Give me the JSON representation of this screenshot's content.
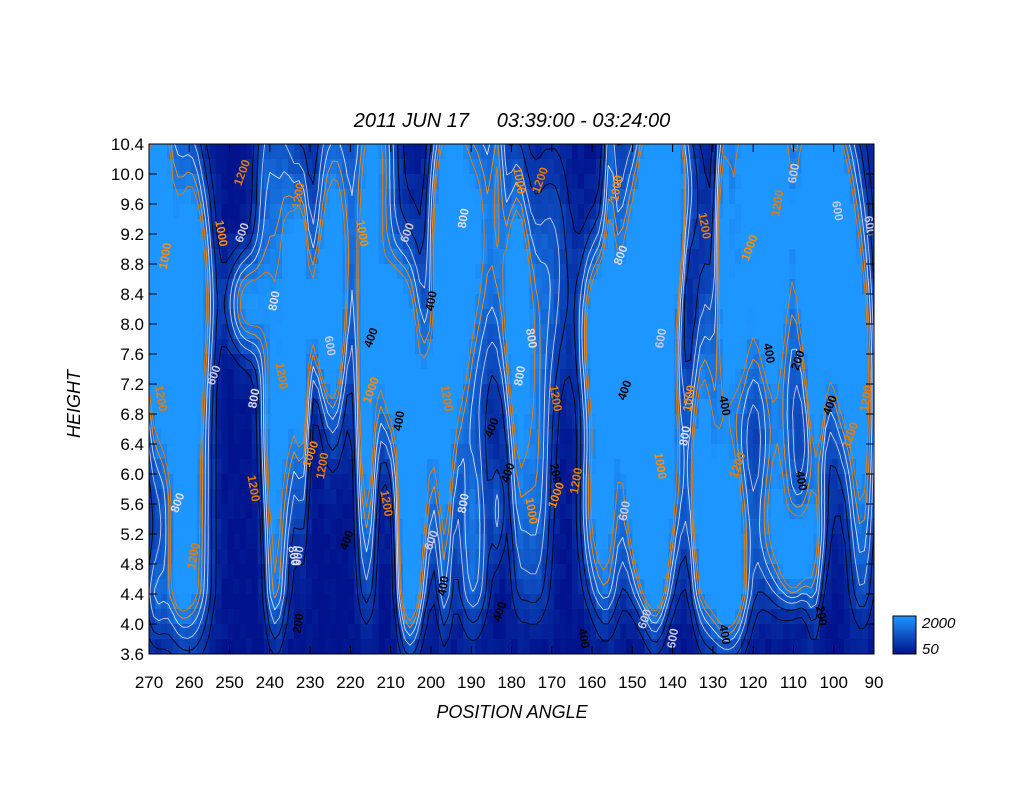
{
  "chart_data": {
    "type": "heatmap",
    "title": "2011 JUN 17     03:39:00 - 03:24:00",
    "xlabel": "POSITION ANGLE",
    "ylabel": "HEIGHT",
    "xlim": [
      270,
      90
    ],
    "ylim": [
      3.6,
      10.4
    ],
    "x_ticks": [
      270,
      260,
      250,
      240,
      230,
      220,
      210,
      200,
      190,
      180,
      170,
      160,
      150,
      140,
      130,
      120,
      110,
      100,
      90
    ],
    "y_ticks": [
      3.6,
      4.0,
      4.4,
      4.8,
      5.2,
      5.6,
      6.0,
      6.4,
      6.8,
      7.2,
      7.6,
      8.0,
      8.4,
      8.8,
      9.2,
      9.6,
      10.0,
      10.4
    ],
    "colorbar": {
      "min": 50,
      "max": 2000,
      "min_label": "50",
      "max_label": "2000"
    },
    "contour_levels": [
      200,
      400,
      600,
      800,
      1000,
      1200
    ],
    "contour_colors": {
      "200": "#000000",
      "400": "#000000",
      "600": "#c8c8e6",
      "800": "#dcdcff",
      "1000": "#ff8a00",
      "1200": "#e87a00"
    },
    "colors": {
      "low": "#00128c",
      "high": "#1e96ff"
    },
    "contour_labels": [
      {
        "x": 232,
        "y": 4.0,
        "v": 200
      },
      {
        "x": 104,
        "y": 4.1,
        "v": 200
      },
      {
        "x": 182,
        "y": 4.15,
        "v": 400
      },
      {
        "x": 196,
        "y": 4.5,
        "v": 400
      },
      {
        "x": 163,
        "y": 3.8,
        "v": 400
      },
      {
        "x": 146,
        "y": 4.05,
        "v": 600
      },
      {
        "x": 139,
        "y": 3.8,
        "v": 600
      },
      {
        "x": 128,
        "y": 3.85,
        "v": 400
      },
      {
        "x": 220,
        "y": 5.1,
        "v": 400
      },
      {
        "x": 232,
        "y": 4.9,
        "v": 600
      },
      {
        "x": 235,
        "y": 4.9,
        "v": 800
      },
      {
        "x": 262,
        "y": 5.6,
        "v": 800
      },
      {
        "x": 258,
        "y": 4.9,
        "v": 1200
      },
      {
        "x": 245,
        "y": 5.8,
        "v": 1200
      },
      {
        "x": 229,
        "y": 6.25,
        "v": 1000
      },
      {
        "x": 226,
        "y": 6.1,
        "v": 1200
      },
      {
        "x": 212,
        "y": 5.6,
        "v": 1200
      },
      {
        "x": 199,
        "y": 5.1,
        "v": 600
      },
      {
        "x": 191,
        "y": 5.6,
        "v": 800
      },
      {
        "x": 176,
        "y": 5.5,
        "v": 1000
      },
      {
        "x": 168,
        "y": 5.7,
        "v": 1000
      },
      {
        "x": 163,
        "y": 5.9,
        "v": 1200
      },
      {
        "x": 170,
        "y": 6.0,
        "v": 200
      },
      {
        "x": 180,
        "y": 6.0,
        "v": 400
      },
      {
        "x": 151,
        "y": 5.5,
        "v": 600
      },
      {
        "x": 144,
        "y": 6.1,
        "v": 1000
      },
      {
        "x": 123,
        "y": 6.1,
        "v": 1200
      },
      {
        "x": 136,
        "y": 6.5,
        "v": 800
      },
      {
        "x": 109,
        "y": 5.9,
        "v": 400
      },
      {
        "x": 95,
        "y": 6.5,
        "v": 1200
      },
      {
        "x": 91,
        "y": 7.0,
        "v": 1200
      },
      {
        "x": 268,
        "y": 7.0,
        "v": 1200
      },
      {
        "x": 253,
        "y": 7.3,
        "v": 600
      },
      {
        "x": 243,
        "y": 7.0,
        "v": 800
      },
      {
        "x": 238,
        "y": 7.3,
        "v": 1200
      },
      {
        "x": 214,
        "y": 7.1,
        "v": 1000
      },
      {
        "x": 207,
        "y": 6.7,
        "v": 400
      },
      {
        "x": 197,
        "y": 7.0,
        "v": 1200
      },
      {
        "x": 184,
        "y": 6.6,
        "v": 400
      },
      {
        "x": 177,
        "y": 7.3,
        "v": 800
      },
      {
        "x": 170,
        "y": 7.0,
        "v": 1200
      },
      {
        "x": 151,
        "y": 7.1,
        "v": 400
      },
      {
        "x": 135,
        "y": 7.0,
        "v": 1000
      },
      {
        "x": 128,
        "y": 6.9,
        "v": 400
      },
      {
        "x": 100,
        "y": 6.9,
        "v": 400
      },
      {
        "x": 238,
        "y": 8.3,
        "v": 800
      },
      {
        "x": 226,
        "y": 7.7,
        "v": 600
      },
      {
        "x": 214,
        "y": 7.8,
        "v": 400
      },
      {
        "x": 199,
        "y": 8.3,
        "v": 400
      },
      {
        "x": 176,
        "y": 7.8,
        "v": 800
      },
      {
        "x": 152,
        "y": 8.9,
        "v": 800
      },
      {
        "x": 142,
        "y": 7.8,
        "v": 600
      },
      {
        "x": 117,
        "y": 7.6,
        "v": 400
      },
      {
        "x": 108,
        "y": 7.5,
        "v": 200
      },
      {
        "x": 265,
        "y": 8.9,
        "v": 1000
      },
      {
        "x": 253,
        "y": 9.2,
        "v": 1000
      },
      {
        "x": 246,
        "y": 9.2,
        "v": 600
      },
      {
        "x": 232,
        "y": 9.7,
        "v": 1200
      },
      {
        "x": 218,
        "y": 9.2,
        "v": 1000
      },
      {
        "x": 205,
        "y": 9.2,
        "v": 600
      },
      {
        "x": 191,
        "y": 9.4,
        "v": 800
      },
      {
        "x": 179,
        "y": 9.9,
        "v": 1000
      },
      {
        "x": 172,
        "y": 9.9,
        "v": 1200
      },
      {
        "x": 153,
        "y": 9.8,
        "v": 1000
      },
      {
        "x": 133,
        "y": 9.3,
        "v": 1200
      },
      {
        "x": 120,
        "y": 9.0,
        "v": 1000
      },
      {
        "x": 113,
        "y": 9.6,
        "v": 1200
      },
      {
        "x": 100,
        "y": 9.5,
        "v": 600
      },
      {
        "x": 246,
        "y": 10.0,
        "v": 1200
      },
      {
        "x": 109,
        "y": 10.0,
        "v": 600
      },
      {
        "x": 92,
        "y": 9.3,
        "v": 600
      }
    ]
  }
}
